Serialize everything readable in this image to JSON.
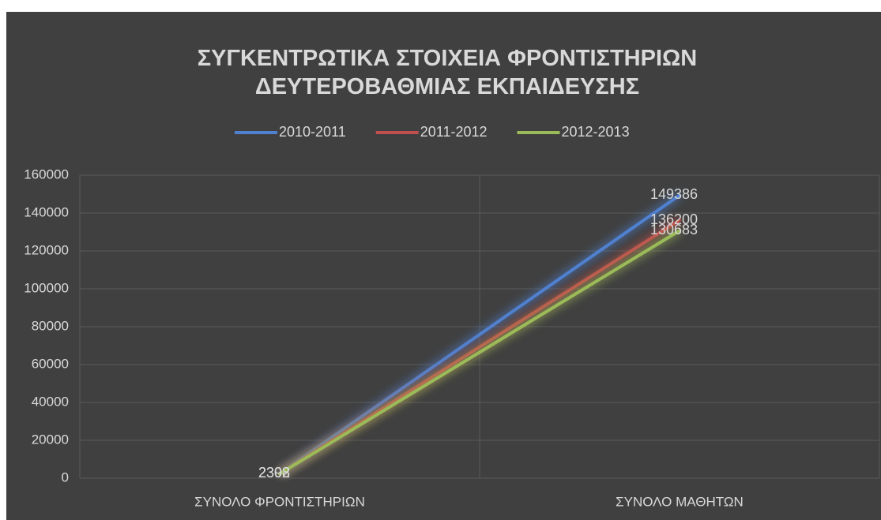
{
  "chart_data": {
    "type": "line",
    "title": "ΣΥΓΚΕΝΤΡΩΤΙΚΑ ΣΤΟΙΧΕΙΑ ΦΡΟΝΤΙΣΤΗΡΙΩΝ ΔΕΥΤΕΡΟΒΑΘΜΙΑΣ ΕΚΠΑΙΔΕΥΣΗΣ",
    "categories": [
      "ΣΥΝΟΛΟ ΦΡΟΝΤΙΣΤΗΡΙΩΝ",
      "ΣΥΝΟΛΟ ΜΑΘΗΤΩΝ"
    ],
    "series": [
      {
        "name": "2010-2011",
        "color": "#4f81d0",
        "values": [
          2398,
          149386
        ]
      },
      {
        "name": "2011-2012",
        "color": "#c0504d",
        "values": [
          2308,
          136200
        ]
      },
      {
        "name": "2012-2013",
        "color": "#9bbb59",
        "values": [
          2302,
          130683
        ]
      }
    ],
    "ylim": [
      0,
      160000
    ],
    "yticks": [
      0,
      20000,
      40000,
      60000,
      80000,
      100000,
      120000,
      140000,
      160000
    ],
    "grid": true,
    "legend": "top"
  }
}
